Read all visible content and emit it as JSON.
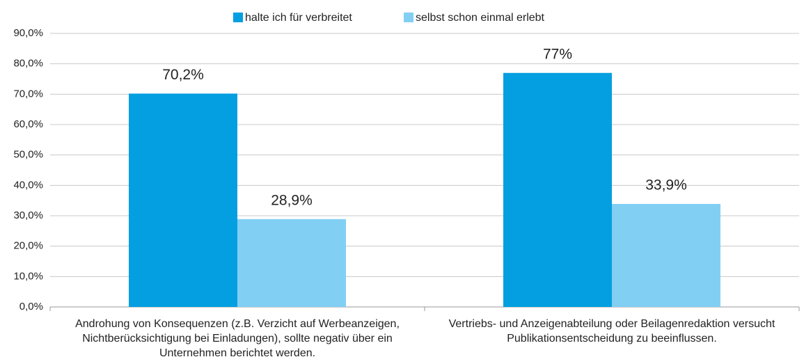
{
  "chart_data": {
    "type": "bar",
    "categories": [
      "Androhung von Konsequenzen (z.B. Verzicht auf Werbeanzeigen, Nichtberücksichtigung bei Einladungen), sollte negativ über ein Unternehmen berichtet werden.",
      "Vertriebs- und Anzeigenabteilung oder Beilagenredaktion versucht Publikationsentscheidung zu beeinflussen."
    ],
    "series": [
      {
        "name": "halte ich für verbreitet",
        "color": "#049fe0",
        "values": [
          70.2,
          77
        ],
        "value_labels": [
          "70,2%",
          "77%"
        ]
      },
      {
        "name": "selbst schon einmal erlebt",
        "color": "#82cff4",
        "values": [
          28.9,
          33.9
        ],
        "value_labels": [
          "28,9%",
          "33,9%"
        ]
      }
    ],
    "ylim": [
      0,
      90
    ],
    "yticks": [
      {
        "value": 0,
        "label": "0,0%"
      },
      {
        "value": 10,
        "label": "10,0%"
      },
      {
        "value": 20,
        "label": "20,0%"
      },
      {
        "value": 30,
        "label": "30,0%"
      },
      {
        "value": 40,
        "label": "40,0%"
      },
      {
        "value": 50,
        "label": "50,0%"
      },
      {
        "value": 60,
        "label": "60,0%"
      },
      {
        "value": 70,
        "label": "70,0%"
      },
      {
        "value": 80,
        "label": "80,0%"
      },
      {
        "value": 90,
        "label": "90,0%"
      }
    ],
    "grid": true,
    "legend": "top"
  }
}
